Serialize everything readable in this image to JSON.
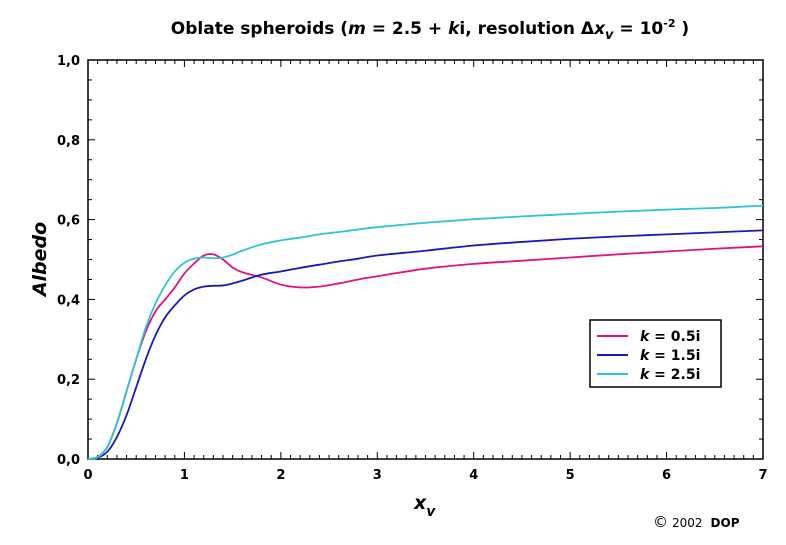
{
  "chart_data": {
    "type": "line",
    "title": {
      "prefix": "Oblate spheroids (",
      "m": "m",
      "eq1": " = 2.5 + ",
      "k": "k",
      "suffix1": "i, resolution ",
      "delta": "Δ",
      "x": "x",
      "sub": "v",
      "eq2": " = 10",
      "exp": "-2",
      "close": " )"
    },
    "xlabel": {
      "main": "x",
      "sub": "v"
    },
    "ylabel": "Albedo",
    "xlim": [
      0,
      7
    ],
    "ylim": [
      0,
      1
    ],
    "x_ticks": [
      "0",
      "1",
      "2",
      "3",
      "4",
      "5",
      "6",
      "7"
    ],
    "y_ticks": [
      "0,0",
      "0,2",
      "0,4",
      "0,6",
      "0,8",
      "1,0"
    ],
    "grid": false,
    "legend_position": "right-center",
    "series": [
      {
        "name": "k = 0.5i",
        "name_parts": {
          "k": "k",
          "rest": " = 0.5i"
        },
        "color": "#e0147a",
        "x": [
          0.0,
          0.1,
          0.2,
          0.3,
          0.4,
          0.5,
          0.6,
          0.7,
          0.8,
          0.9,
          1.0,
          1.1,
          1.2,
          1.3,
          1.4,
          1.5,
          1.6,
          1.8,
          2.0,
          2.2,
          2.4,
          2.6,
          2.8,
          3.0,
          3.5,
          4.0,
          4.5,
          5.0,
          5.5,
          6.0,
          6.5,
          7.0
        ],
        "y": [
          0.0,
          0.005,
          0.03,
          0.09,
          0.17,
          0.25,
          0.32,
          0.37,
          0.4,
          0.43,
          0.465,
          0.49,
          0.51,
          0.513,
          0.5,
          0.48,
          0.468,
          0.455,
          0.437,
          0.43,
          0.432,
          0.44,
          0.45,
          0.458,
          0.477,
          0.489,
          0.497,
          0.505,
          0.513,
          0.52,
          0.527,
          0.533
        ]
      },
      {
        "name": "k = 1.5i",
        "name_parts": {
          "k": "k",
          "rest": " = 1.5i"
        },
        "color": "#1a1ab8",
        "x": [
          0.0,
          0.1,
          0.2,
          0.3,
          0.4,
          0.5,
          0.6,
          0.7,
          0.8,
          0.9,
          1.0,
          1.1,
          1.2,
          1.3,
          1.4,
          1.5,
          1.6,
          1.8,
          2.0,
          2.2,
          2.4,
          2.6,
          2.8,
          3.0,
          3.5,
          4.0,
          4.5,
          5.0,
          5.5,
          6.0,
          6.5,
          7.0
        ],
        "y": [
          0.0,
          0.003,
          0.018,
          0.055,
          0.11,
          0.18,
          0.25,
          0.31,
          0.355,
          0.385,
          0.41,
          0.425,
          0.432,
          0.434,
          0.435,
          0.44,
          0.447,
          0.462,
          0.47,
          0.479,
          0.487,
          0.495,
          0.502,
          0.51,
          0.522,
          0.535,
          0.544,
          0.552,
          0.558,
          0.563,
          0.568,
          0.573
        ]
      },
      {
        "name": "k = 2.5i",
        "name_parts": {
          "k": "k",
          "rest": " = 2.5i"
        },
        "color": "#2ec4d4",
        "x": [
          0.0,
          0.1,
          0.2,
          0.3,
          0.4,
          0.5,
          0.6,
          0.7,
          0.8,
          0.9,
          1.0,
          1.1,
          1.2,
          1.3,
          1.4,
          1.5,
          1.6,
          1.8,
          2.0,
          2.2,
          2.4,
          2.6,
          2.8,
          3.0,
          3.5,
          4.0,
          4.5,
          5.0,
          5.5,
          6.0,
          6.5,
          7.0
        ],
        "y": [
          0.0,
          0.004,
          0.03,
          0.09,
          0.17,
          0.25,
          0.33,
          0.39,
          0.435,
          0.47,
          0.492,
          0.502,
          0.505,
          0.503,
          0.505,
          0.512,
          0.522,
          0.538,
          0.548,
          0.555,
          0.563,
          0.569,
          0.575,
          0.581,
          0.592,
          0.601,
          0.608,
          0.614,
          0.62,
          0.625,
          0.629,
          0.635
        ]
      }
    ]
  },
  "copyright": {
    "symbol": "©",
    "year": "2002",
    "owner": "DOP"
  }
}
